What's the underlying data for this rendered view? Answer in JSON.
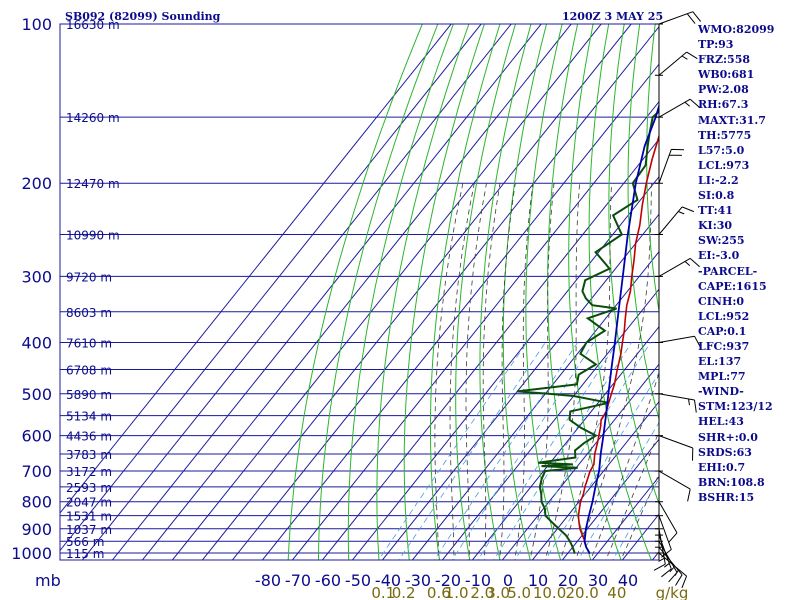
{
  "header": {
    "station": "SB092 (82099) Sounding",
    "valid_time": "1200Z  3 MAY 25"
  },
  "indices": [
    "WMO:82099",
    "TP:93",
    "FRZ:558",
    "WB0:681",
    "PW:2.08",
    "RH:67.3",
    "MAXT:31.7",
    "TH:5775",
    "L57:5.0",
    "LCL:973",
    "LI:-2.2",
    "SI:0.8",
    "TT:41",
    "KI:30",
    "SW:255",
    "EI:-3.0",
    "-PARCEL-",
    "CAPE:1615",
    "CINH:0",
    "LCL:952",
    "CAP:0.1",
    "LFC:937",
    "EL:137",
    "MPL:77",
    "-WIND-",
    "STM:123/12",
    "HEL:43",
    "SHR+:0.0",
    "SRDS:63",
    "EHI:0.7",
    "BRN:108.8",
    "BSHR:15"
  ],
  "colors": {
    "frame": "#1a1a9e",
    "isobar_label": "#0b0b8c",
    "isotherm": "#1a1a9e",
    "dry_adiabat": "#2db52d",
    "moist_adiabat": "#3a3a3a",
    "mixing_ratio": "#4a9fd9",
    "temperature": "#c00000",
    "dewpoint": "#0a4d0a",
    "parcel": "#0000b0",
    "wind": "#000000",
    "mixing_ratio_label": "#7a6a10"
  },
  "chart_data": {
    "type": "skew-t log-p sounding",
    "y_axis_unit": "mb",
    "x_axis_unit": "°C",
    "ylim": [
      1000,
      100
    ],
    "xlim": [
      -80,
      0
    ],
    "pressure_ticks": [
      100,
      200,
      300,
      400,
      500,
      600,
      700,
      800,
      900,
      1000
    ],
    "temperature_ticks": [
      -80,
      -70,
      -60,
      -50,
      -40,
      -30,
      -20,
      -10,
      0,
      10,
      20,
      30,
      40
    ],
    "temperature_tick_labels": [
      "-80",
      "-70",
      "-60",
      "-50",
      "-40",
      "-30",
      "-20",
      "-10",
      "0",
      "10",
      "20",
      "30",
      "40"
    ],
    "x_axis_prefix": "mb",
    "height_labels": [
      {
        "p": 100,
        "label": "16630 m"
      },
      {
        "p": 150,
        "label": "14260 m"
      },
      {
        "p": 200,
        "label": "12470 m"
      },
      {
        "p": 250,
        "label": "10990 m"
      },
      {
        "p": 300,
        "label": "9720 m"
      },
      {
        "p": 350,
        "label": "8603 m"
      },
      {
        "p": 400,
        "label": "7610 m"
      },
      {
        "p": 450,
        "label": "6708 m"
      },
      {
        "p": 500,
        "label": "5890 m"
      },
      {
        "p": 550,
        "label": "5134 m"
      },
      {
        "p": 600,
        "label": "4436 m"
      },
      {
        "p": 650,
        "label": "3783 m"
      },
      {
        "p": 700,
        "label": "3172 m"
      },
      {
        "p": 750,
        "label": "2593 m"
      },
      {
        "p": 800,
        "label": "2047 m"
      },
      {
        "p": 850,
        "label": "1531 m"
      },
      {
        "p": 900,
        "label": "1037 m"
      },
      {
        "p": 950,
        "label": "566 m"
      },
      {
        "p": 1000,
        "label": "115 m"
      }
    ],
    "mixing_ratio_labels": [
      "0.1",
      "0.2",
      "0.6",
      "1.0",
      "2.0",
      "3.0",
      "5.0",
      "10.0",
      "20.0",
      "40"
    ],
    "mixing_ratio_values": [
      0.1,
      0.2,
      0.6,
      1.0,
      2.0,
      3.0,
      5.0,
      10.0,
      20.0,
      40
    ],
    "mixing_ratio_unit": "g/kg",
    "series": [
      {
        "key": "temperature",
        "points": [
          [
            1003,
            27.5
          ],
          [
            975,
            24.5
          ],
          [
            950,
            22.5
          ],
          [
            925,
            20.0
          ],
          [
            900,
            17.5
          ],
          [
            875,
            15.5
          ],
          [
            850,
            13.5
          ],
          [
            825,
            12.0
          ],
          [
            800,
            10.5
          ],
          [
            775,
            9.5
          ],
          [
            750,
            8.0
          ],
          [
            725,
            6.8
          ],
          [
            700,
            5.5
          ],
          [
            680,
            5.0
          ],
          [
            650,
            2.5
          ],
          [
            620,
            0.5
          ],
          [
            600,
            -1.0
          ],
          [
            575,
            -3.0
          ],
          [
            560,
            -4.5
          ],
          [
            540,
            -5.0
          ],
          [
            520,
            -6.5
          ],
          [
            500,
            -8.0
          ],
          [
            480,
            -9.5
          ],
          [
            450,
            -12.5
          ],
          [
            420,
            -15.5
          ],
          [
            400,
            -18.0
          ],
          [
            380,
            -20.5
          ],
          [
            360,
            -23.5
          ],
          [
            340,
            -26.5
          ],
          [
            320,
            -29.0
          ],
          [
            300,
            -32.5
          ],
          [
            280,
            -36.0
          ],
          [
            260,
            -40.0
          ],
          [
            240,
            -43.5
          ],
          [
            220,
            -48.0
          ],
          [
            200,
            -52.5
          ],
          [
            180,
            -57.0
          ],
          [
            160,
            -61.5
          ],
          [
            145,
            -65.5
          ],
          [
            130,
            -69.5
          ],
          [
            115,
            -73.5
          ],
          [
            110,
            -75.0
          ],
          [
            104,
            -73.5
          ],
          [
            100,
            -77.0
          ]
        ]
      },
      {
        "key": "dewpoint",
        "points": [
          [
            1003,
            22.5
          ],
          [
            975,
            20.0
          ],
          [
            950,
            17.5
          ],
          [
            925,
            14.5
          ],
          [
            900,
            10.5
          ],
          [
            875,
            6.5
          ],
          [
            850,
            2.5
          ],
          [
            825,
            0.5
          ],
          [
            800,
            -2.5
          ],
          [
            775,
            -4.5
          ],
          [
            750,
            -7.0
          ],
          [
            725,
            -8.5
          ],
          [
            700,
            -9.5
          ],
          [
            690,
            0.5
          ],
          [
            685,
            -12.0
          ],
          [
            680,
            -2.0
          ],
          [
            675,
            -14.0
          ],
          [
            660,
            -3.0
          ],
          [
            640,
            -5.0
          ],
          [
            620,
            -4.0
          ],
          [
            600,
            -2.0
          ],
          [
            580,
            -9.0
          ],
          [
            560,
            -15.0
          ],
          [
            540,
            -17.0
          ],
          [
            520,
            -6.5
          ],
          [
            505,
            -20.0
          ],
          [
            500,
            -29.0
          ],
          [
            495,
            -40.0
          ],
          [
            480,
            -22.0
          ],
          [
            460,
            -24.0
          ],
          [
            440,
            -21.0
          ],
          [
            420,
            -29.0
          ],
          [
            400,
            -30.0
          ],
          [
            380,
            -27.0
          ],
          [
            360,
            -36.0
          ],
          [
            345,
            -29.0
          ],
          [
            340,
            -38.0
          ],
          [
            330,
            -42.0
          ],
          [
            320,
            -45.0
          ],
          [
            305,
            -47.0
          ],
          [
            290,
            -42.0
          ],
          [
            270,
            -51.0
          ],
          [
            250,
            -47.0
          ],
          [
            230,
            -55.0
          ],
          [
            215,
            -51.0
          ],
          [
            200,
            -57.0
          ],
          [
            185,
            -57.5
          ],
          [
            170,
            -62.0
          ],
          [
            160,
            -65.0
          ],
          [
            150,
            -68.0
          ],
          [
            140,
            -66.5
          ],
          [
            130,
            -70.0
          ],
          [
            120,
            -74.5
          ],
          [
            110,
            -77.0
          ]
        ]
      },
      {
        "key": "parcel",
        "points": [
          [
            1003,
            27.5
          ],
          [
            975,
            24.5
          ],
          [
            952,
            22.5
          ],
          [
            925,
            21.0
          ],
          [
            900,
            19.5
          ],
          [
            850,
            17.0
          ],
          [
            800,
            14.5
          ],
          [
            750,
            11.5
          ],
          [
            700,
            8.5
          ],
          [
            650,
            4.5
          ],
          [
            600,
            0.5
          ],
          [
            550,
            -4.0
          ],
          [
            500,
            -9.0
          ],
          [
            450,
            -14.5
          ],
          [
            400,
            -20.5
          ],
          [
            350,
            -27.5
          ],
          [
            300,
            -35.5
          ],
          [
            250,
            -45.0
          ],
          [
            200,
            -56.0
          ],
          [
            170,
            -63.0
          ],
          [
            150,
            -67.0
          ],
          [
            130,
            -72.5
          ],
          [
            110,
            -77.0
          ],
          [
            100,
            -80.0
          ]
        ]
      }
    ],
    "wind_barbs": [
      {
        "p": 1000,
        "dir": 130,
        "spd": 10
      },
      {
        "p": 975,
        "dir": 140,
        "spd": 15
      },
      {
        "p": 950,
        "dir": 150,
        "spd": 15
      },
      {
        "p": 925,
        "dir": 160,
        "spd": 15
      },
      {
        "p": 900,
        "dir": 170,
        "spd": 15
      },
      {
        "p": 850,
        "dir": 160,
        "spd": 10
      },
      {
        "p": 800,
        "dir": 150,
        "spd": 10
      },
      {
        "p": 700,
        "dir": 120,
        "spd": 10
      },
      {
        "p": 600,
        "dir": 110,
        "spd": 10
      },
      {
        "p": 500,
        "dir": 100,
        "spd": 15
      },
      {
        "p": 400,
        "dir": 80,
        "spd": 10
      },
      {
        "p": 300,
        "dir": 60,
        "spd": 15
      },
      {
        "p": 250,
        "dir": 40,
        "spd": 15
      },
      {
        "p": 200,
        "dir": 20,
        "spd": 20
      },
      {
        "p": 150,
        "dir": 60,
        "spd": 15
      },
      {
        "p": 125,
        "dir": 50,
        "spd": 15
      },
      {
        "p": 100,
        "dir": 70,
        "spd": 20
      }
    ]
  }
}
